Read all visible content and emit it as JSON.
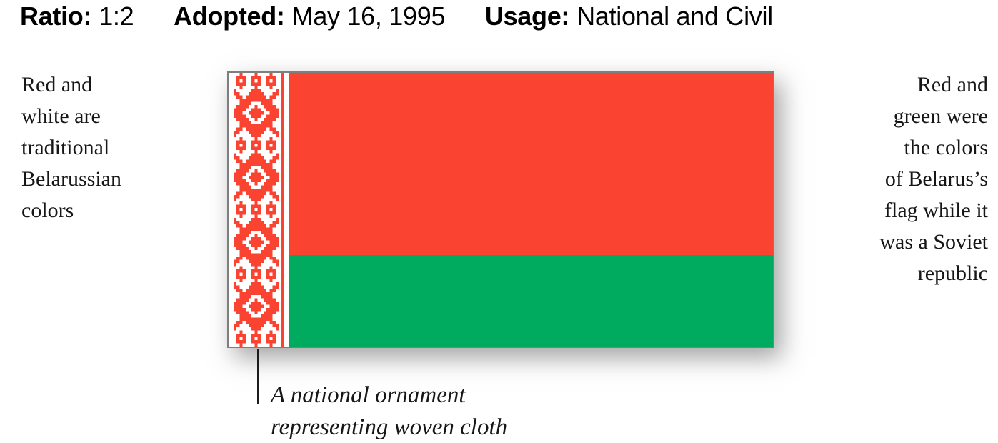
{
  "meta": {
    "ratio_label": "Ratio:",
    "ratio_value": "1:2",
    "adopted_label": "Adopted:",
    "adopted_value": "May 16, 1995",
    "usage_label": "Usage:",
    "usage_value": "National and Civil"
  },
  "left_note": {
    "lines": [
      "Red and",
      "white are",
      "traditional",
      "Belarussian",
      "colors"
    ]
  },
  "right_note": {
    "lines": [
      "Red and",
      "green were",
      "the colors",
      "of Belarus’s",
      "flag while it",
      "was a Soviet",
      "republic"
    ]
  },
  "annotation": {
    "line1": "A national ornament",
    "line2": "representing woven cloth"
  },
  "flag": {
    "name": "Flag of Belarus",
    "red": "#fa4331",
    "green": "#00aa5f",
    "white": "#ffffff",
    "border_gray": "#7e7e7e",
    "ornament": "red-on-white woven hoist ornament"
  }
}
